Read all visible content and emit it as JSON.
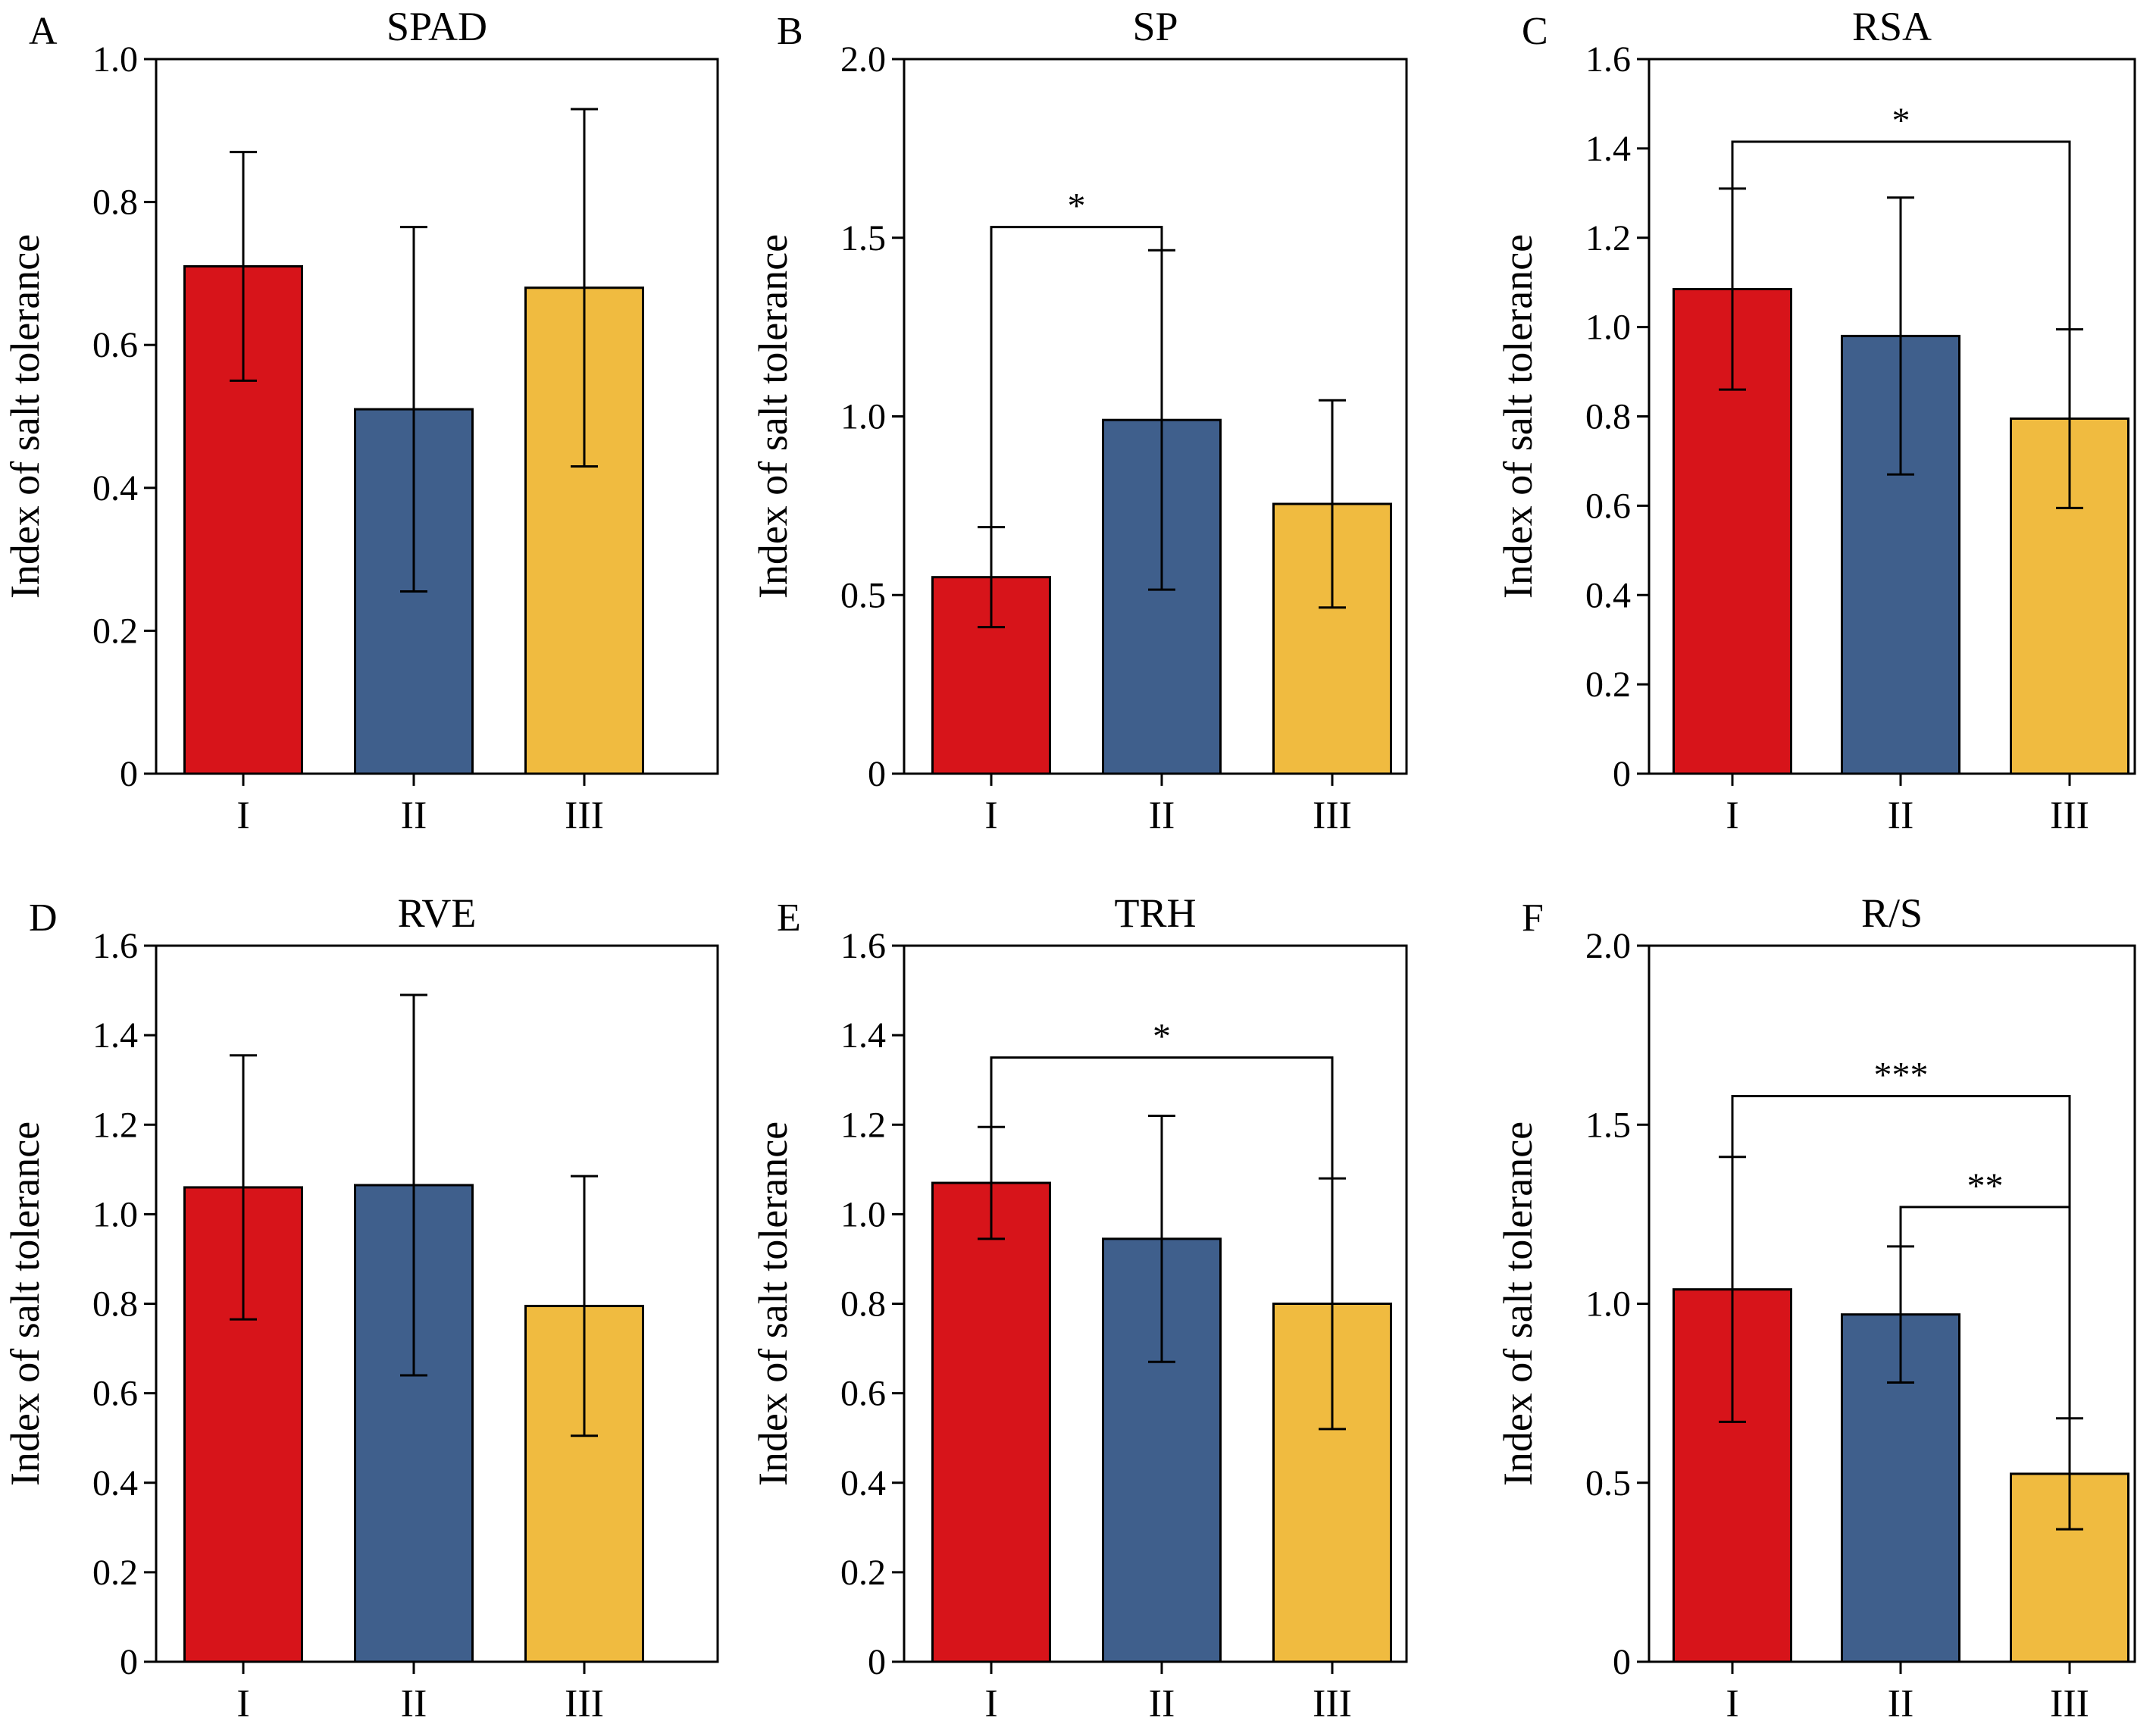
{
  "figure": {
    "colors": {
      "I": "#d7141a",
      "II": "#3f5f8c",
      "III": "#f0bb40"
    }
  },
  "chart_data": [
    {
      "panel": "A",
      "type": "bar",
      "title": "SPAD",
      "xlabel": "",
      "ylabel": "Index of salt tolerance",
      "categories": [
        "I",
        "II",
        "III"
      ],
      "values": [
        0.71,
        0.51,
        0.68
      ],
      "errors": [
        0.16,
        0.255,
        0.25
      ],
      "ylim": [
        0,
        1.0
      ],
      "yticks": [
        0,
        0.2,
        0.4,
        0.6,
        0.8,
        1.0
      ],
      "ytick_labels": [
        "0",
        "0.2",
        "0.4",
        "0.6",
        "0.8",
        "1.0"
      ],
      "significance": []
    },
    {
      "panel": "B",
      "type": "bar",
      "title": "SP",
      "xlabel": "",
      "ylabel": "Index of salt tolerance",
      "categories": [
        "I",
        "II",
        "III"
      ],
      "values": [
        0.55,
        0.99,
        0.755
      ],
      "errors": [
        0.14,
        0.475,
        0.29
      ],
      "ylim": [
        0,
        2.0
      ],
      "yticks": [
        0,
        0.5,
        1.0,
        1.5,
        2.0
      ],
      "ytick_labels": [
        "0",
        "0.5",
        "1.0",
        "1.5",
        "2.0"
      ],
      "significance": [
        {
          "from": "I",
          "to": "II",
          "label": "*",
          "y": 1.53
        }
      ]
    },
    {
      "panel": "C",
      "type": "bar",
      "title": "RSA",
      "xlabel": "",
      "ylabel": "Index of salt tolerance",
      "categories": [
        "I",
        "II",
        "III"
      ],
      "values": [
        1.085,
        0.98,
        0.795
      ],
      "errors": [
        0.225,
        0.31,
        0.2
      ],
      "ylim": [
        0,
        1.6
      ],
      "yticks": [
        0,
        0.2,
        0.4,
        0.6,
        0.8,
        1.0,
        1.2,
        1.4,
        1.6
      ],
      "ytick_labels": [
        "0",
        "0.2",
        "0.4",
        "0.6",
        "0.8",
        "1.0",
        "1.2",
        "1.4",
        "1.6"
      ],
      "significance": [
        {
          "from": "I",
          "to": "III",
          "label": "*",
          "y": 1.415
        }
      ]
    },
    {
      "panel": "D",
      "type": "bar",
      "title": "RVE",
      "xlabel": "",
      "ylabel": "Index of salt tolerance",
      "categories": [
        "I",
        "II",
        "III"
      ],
      "values": [
        1.06,
        1.065,
        0.795
      ],
      "errors": [
        0.295,
        0.425,
        0.29
      ],
      "ylim": [
        0,
        1.6
      ],
      "yticks": [
        0,
        0.2,
        0.4,
        0.6,
        0.8,
        1.0,
        1.2,
        1.4,
        1.6
      ],
      "ytick_labels": [
        "0",
        "0.2",
        "0.4",
        "0.6",
        "0.8",
        "1.0",
        "1.2",
        "1.4",
        "1.6"
      ],
      "significance": []
    },
    {
      "panel": "E",
      "type": "bar",
      "title": "TRH",
      "xlabel": "",
      "ylabel": "Index of salt tolerance",
      "categories": [
        "I",
        "II",
        "III"
      ],
      "values": [
        1.07,
        0.945,
        0.8
      ],
      "errors": [
        0.125,
        0.275,
        0.28
      ],
      "ylim": [
        0,
        1.6
      ],
      "yticks": [
        0,
        0.2,
        0.4,
        0.6,
        0.8,
        1.0,
        1.2,
        1.4,
        1.6
      ],
      "ytick_labels": [
        "0",
        "0.2",
        "0.4",
        "0.6",
        "0.8",
        "1.0",
        "1.2",
        "1.4",
        "1.6"
      ],
      "significance": [
        {
          "from": "I",
          "to": "III",
          "label": "*",
          "y": 1.35
        }
      ]
    },
    {
      "panel": "F",
      "type": "bar",
      "title": "R/S",
      "xlabel": "",
      "ylabel": "Index of salt tolerance",
      "categories": [
        "I",
        "II",
        "III"
      ],
      "values": [
        1.04,
        0.97,
        0.525
      ],
      "errors": [
        0.37,
        0.19,
        0.155
      ],
      "ylim": [
        0,
        2.0
      ],
      "yticks": [
        0,
        0.5,
        1.0,
        1.5,
        2.0
      ],
      "ytick_labels": [
        "0",
        "0.5",
        "1.0",
        "1.5",
        "2.0"
      ],
      "significance": [
        {
          "from": "I",
          "to": "III",
          "label": "***",
          "y": 1.58
        },
        {
          "from": "II",
          "to": "III",
          "label": "**",
          "y": 1.27
        }
      ]
    }
  ]
}
